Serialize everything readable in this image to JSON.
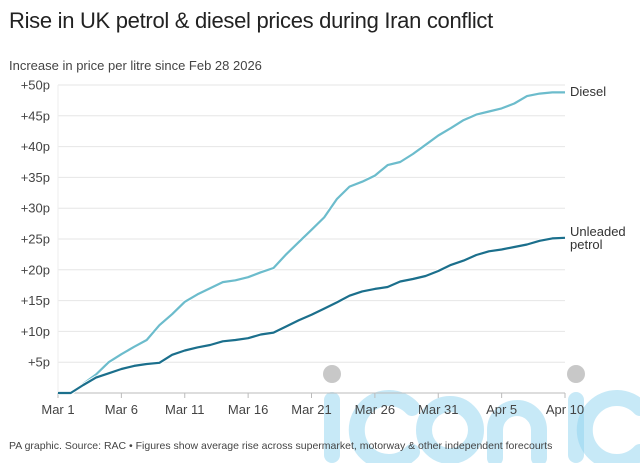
{
  "chart_data": {
    "type": "line",
    "title": "Rise in UK petrol & diesel prices during Iran conflict",
    "subtitle": "Increase in price per litre since Feb 28 2026",
    "source": "PA graphic. Source: RAC • Figures show average rise across supermarket, motorway & other independent forecourts",
    "x_ticks": [
      "Mar 1",
      "Mar 6",
      "Mar 11",
      "Mar 16",
      "Mar 21",
      "Mar 26",
      "Mar 31",
      "Apr 5",
      "Apr 10"
    ],
    "y_ticks": [
      "+5p",
      "+10p",
      "+15p",
      "+20p",
      "+25p",
      "+30p",
      "+35p",
      "+40p",
      "+45p",
      "+50p"
    ],
    "ylim": [
      0,
      50
    ],
    "x_range": [
      "Mar 1",
      "Apr 10"
    ],
    "grid": true,
    "x": [
      "Mar 1",
      "Mar 2",
      "Mar 3",
      "Mar 4",
      "Mar 5",
      "Mar 6",
      "Mar 7",
      "Mar 8",
      "Mar 9",
      "Mar 10",
      "Mar 11",
      "Mar 12",
      "Mar 13",
      "Mar 14",
      "Mar 15",
      "Mar 16",
      "Mar 17",
      "Mar 18",
      "Mar 19",
      "Mar 20",
      "Mar 21",
      "Mar 22",
      "Mar 23",
      "Mar 24",
      "Mar 25",
      "Mar 26",
      "Mar 27",
      "Mar 28",
      "Mar 29",
      "Mar 30",
      "Mar 31",
      "Apr 1",
      "Apr 2",
      "Apr 3",
      "Apr 4",
      "Apr 5",
      "Apr 6",
      "Apr 7",
      "Apr 8",
      "Apr 9",
      "Apr 10"
    ],
    "series": [
      {
        "name": "Diesel",
        "color": "#6cbccc",
        "values": [
          0,
          0,
          1.5,
          3,
          5,
          6.3,
          7.5,
          8.6,
          11,
          12.8,
          14.8,
          16,
          17,
          18,
          18.3,
          18.8,
          19.6,
          20.3,
          22.5,
          24.5,
          26.5,
          28.5,
          31.5,
          33.5,
          34.3,
          35.3,
          37,
          37.5,
          38.8,
          40.3,
          41.8,
          43,
          44.3,
          45.2,
          45.7,
          46.2,
          47,
          48.2,
          48.6,
          48.8,
          48.8
        ]
      },
      {
        "name": "Unleaded petrol",
        "color": "#1b6f8c",
        "values": [
          0,
          0,
          1.3,
          2.5,
          3.2,
          3.9,
          4.4,
          4.7,
          4.9,
          6.2,
          6.9,
          7.4,
          7.8,
          8.4,
          8.6,
          8.9,
          9.5,
          9.8,
          10.8,
          11.8,
          12.7,
          13.7,
          14.7,
          15.8,
          16.5,
          16.9,
          17.2,
          18.1,
          18.5,
          19,
          19.8,
          20.8,
          21.5,
          22.4,
          23,
          23.3,
          23.7,
          24.1,
          24.7,
          25.1,
          25.2
        ]
      }
    ],
    "series_labels": [
      "Diesel",
      "Unleaded",
      "petrol"
    ]
  },
  "watermark": "iconic"
}
